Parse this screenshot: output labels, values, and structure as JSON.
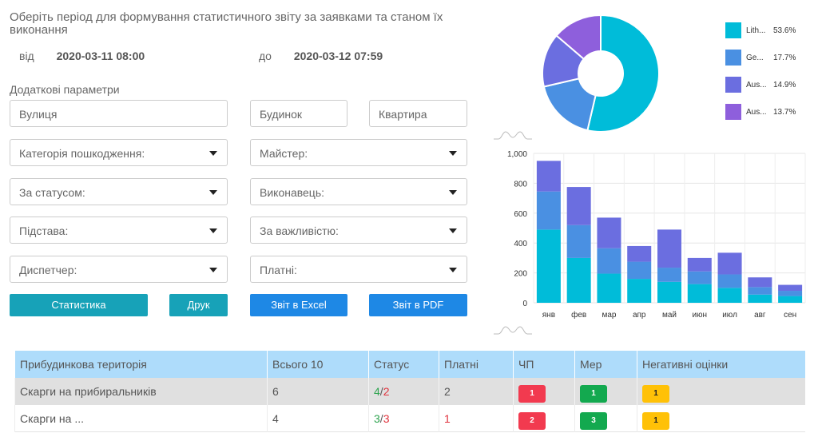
{
  "header": {
    "title": "Оберіть період для формування статистичного звіту за заявками та станом їх виконання",
    "from_label": "від",
    "from_value": "2020-03-11 08:00",
    "to_label": "до",
    "to_value": "2020-03-12 07:59"
  },
  "filters": {
    "section_title": "Додаткові параметри",
    "street_placeholder": "Вулиця",
    "building_placeholder": "Будинок",
    "apartment_placeholder": "Квартира",
    "damage_category": "Категорія пошкодження:",
    "master": "Майстер:",
    "status": "За статусом:",
    "executor": "Виконавець:",
    "basis": "Підстава:",
    "importance": "За важливістю:",
    "dispatcher": "Диспетчер:",
    "paid": "Платні:"
  },
  "buttons": {
    "statistics": "Статистика",
    "print": "Друк",
    "excel": "Звіт в Excel",
    "pdf": "Звіт в PDF"
  },
  "colors": {
    "teal": "#17a2b8",
    "blue": "#1e88e5",
    "series_a": "#00bcd9",
    "series_b": "#4a90e2",
    "series_c": "#6b6ee0",
    "series_d": "#8e5fdc"
  },
  "chart_data": [
    {
      "type": "pie",
      "labels": [
        "Lith...",
        "Ge...",
        "Aus...",
        "Aus..."
      ],
      "values": [
        53.6,
        17.7,
        14.9,
        13.7
      ],
      "value_labels": [
        "53.6%",
        "17.7%",
        "14.9%",
        "13.7%"
      ],
      "legend": "right"
    },
    {
      "type": "bar",
      "stacked": true,
      "categories": [
        "янв",
        "фев",
        "мар",
        "апр",
        "май",
        "июн",
        "июл",
        "авг",
        "сен"
      ],
      "series": [
        {
          "values": [
            490,
            300,
            195,
            160,
            140,
            125,
            100,
            55,
            45
          ]
        },
        {
          "values": [
            255,
            220,
            170,
            115,
            95,
            85,
            90,
            50,
            35
          ]
        },
        {
          "values": [
            205,
            255,
            205,
            105,
            255,
            90,
            145,
            65,
            40
          ]
        }
      ],
      "ylim": [
        0,
        1000
      ],
      "yticks": [
        "0",
        "200",
        "400",
        "600",
        "800",
        "1,000"
      ],
      "grid": true
    }
  ],
  "table": {
    "headers": [
      "Прибудинкова територія",
      "Всього 10",
      "Статус",
      "Платні",
      "ЧП",
      "Мер",
      "Негативні оцінки"
    ],
    "rows": [
      {
        "name": "Скарги на прибиральників",
        "total": "6",
        "status_done": "4",
        "status_sep": "/",
        "status_open": "2",
        "paid": "2",
        "chp": "1",
        "mer": "1",
        "neg": "1"
      },
      {
        "name": "Скарги на ...",
        "total": "4",
        "status_done": "3",
        "status_sep": "/",
        "status_open": "3",
        "paid": "1",
        "chp": "2",
        "mer": "3",
        "neg": "1"
      }
    ]
  }
}
